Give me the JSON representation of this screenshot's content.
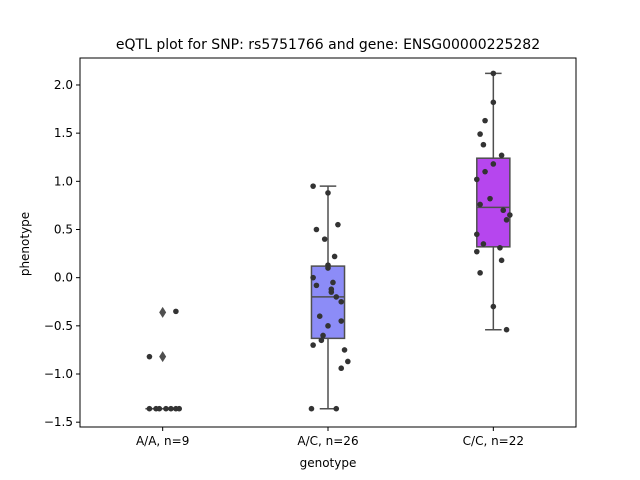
{
  "chart_data": {
    "type": "box",
    "title": "eQTL plot for SNP: rs5751766 and gene: ENSG00000225282",
    "xlabel": "genotype",
    "ylabel": "phenotype",
    "ylim": [
      -1.55,
      2.28
    ],
    "yticks": [
      -1.5,
      -1.0,
      -0.5,
      0.0,
      0.5,
      1.0,
      1.5,
      2.0
    ],
    "ytick_labels": [
      "−1.5",
      "−1.0",
      "−0.5",
      "0.0",
      "0.5",
      "1.0",
      "1.5",
      "2.0"
    ],
    "grid": false,
    "categories": [
      "A/A, n=9",
      "A/C, n=26",
      "C/C, n=22"
    ],
    "boxes": [
      {
        "category": "A/A, n=9",
        "color": "#7b7bf6",
        "q1": -1.36,
        "median": -1.36,
        "q3": -1.36,
        "whisker_low": -1.36,
        "whisker_high": -1.36,
        "fliers": [
          -0.36,
          -0.82
        ]
      },
      {
        "category": "A/C, n=26",
        "color": "#8c8cf7",
        "q1": -0.63,
        "median": -0.2,
        "q3": 0.12,
        "whisker_low": -1.36,
        "whisker_high": 0.95,
        "fliers": []
      },
      {
        "category": "C/C, n=22",
        "color": "#b646ee",
        "q1": 0.32,
        "median": 0.73,
        "q3": 1.24,
        "whisker_low": -0.54,
        "whisker_high": 2.12,
        "fliers": []
      }
    ],
    "points": [
      {
        "category": "A/A, n=9",
        "jitter": [
          -0.08,
          -0.04,
          -0.02,
          0.02,
          0.05,
          0.08,
          0.1,
          -0.08,
          0.08
        ],
        "values": [
          -1.36,
          -1.36,
          -1.36,
          -1.36,
          -1.36,
          -1.36,
          -1.36,
          -0.82,
          -0.35
        ]
      },
      {
        "category": "A/C, n=26",
        "jitter": [
          -0.09,
          0.0,
          -0.07,
          0.06,
          -0.02,
          0.04,
          0.0,
          -0.09,
          0.0,
          0.03,
          0.02,
          -0.07,
          0.02,
          0.08,
          0.05,
          0.0,
          -0.03,
          -0.05,
          0.08,
          -0.04,
          0.1,
          0.12,
          -0.09,
          0.08,
          -0.1,
          0.05
        ],
        "values": [
          0.95,
          0.88,
          0.5,
          0.55,
          0.4,
          0.22,
          0.13,
          0.0,
          0.1,
          -0.05,
          -0.12,
          -0.08,
          -0.15,
          -0.25,
          -0.2,
          -0.5,
          -0.6,
          -0.4,
          -0.45,
          -0.65,
          -0.75,
          -0.87,
          -0.7,
          -0.94,
          -1.36,
          -1.36
        ]
      },
      {
        "category": "C/C, n=22",
        "jitter": [
          0.0,
          0.0,
          -0.05,
          -0.08,
          -0.06,
          -0.1,
          0.05,
          0.0,
          -0.05,
          -0.02,
          -0.08,
          0.06,
          0.1,
          0.08,
          -0.1,
          -0.06,
          -0.1,
          0.04,
          0.05,
          -0.08,
          0.0,
          0.08
        ],
        "values": [
          2.12,
          1.82,
          1.63,
          1.49,
          1.38,
          1.02,
          1.27,
          1.18,
          1.1,
          0.82,
          0.76,
          0.7,
          0.65,
          0.6,
          0.45,
          0.35,
          0.27,
          0.31,
          0.18,
          0.05,
          -0.3,
          -0.54
        ]
      }
    ]
  }
}
